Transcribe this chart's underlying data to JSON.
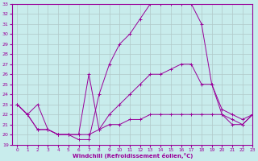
{
  "xlabel": "Windchill (Refroidissement éolien,°C)",
  "xlim": [
    -0.5,
    23
  ],
  "ylim": [
    19,
    33
  ],
  "yticks": [
    19,
    20,
    21,
    22,
    23,
    24,
    25,
    26,
    27,
    28,
    29,
    30,
    31,
    32,
    33
  ],
  "xticks": [
    0,
    1,
    2,
    3,
    4,
    5,
    6,
    7,
    8,
    9,
    10,
    11,
    12,
    13,
    14,
    15,
    16,
    17,
    18,
    19,
    20,
    21,
    22,
    23
  ],
  "bg_color": "#c8ecec",
  "line_color": "#990099",
  "grid_color": "#b0c8c8",
  "lines": [
    {
      "x": [
        0,
        1,
        2,
        3,
        4,
        5,
        6,
        7,
        8,
        9,
        10,
        11,
        12,
        13,
        14,
        15,
        16,
        17,
        18,
        19,
        20,
        21,
        22,
        23
      ],
      "y": [
        23,
        22,
        23,
        20.5,
        20,
        20,
        19.5,
        19.5,
        24,
        27,
        29,
        30,
        31.5,
        33,
        33,
        33,
        33,
        33,
        31,
        25,
        22,
        21.5,
        21,
        22
      ]
    },
    {
      "x": [
        0,
        1,
        2,
        3,
        4,
        5,
        6,
        7,
        8,
        9,
        10,
        11,
        12,
        13,
        14,
        15,
        16,
        17,
        18,
        19,
        20,
        21,
        22,
        23
      ],
      "y": [
        23,
        22,
        20.5,
        20.5,
        20,
        20,
        20,
        26,
        20.5,
        22,
        23,
        24,
        25,
        26,
        26,
        26.5,
        27,
        27,
        25,
        25,
        22.5,
        22,
        21.5,
        22
      ]
    },
    {
      "x": [
        0,
        1,
        2,
        3,
        4,
        5,
        6,
        7,
        8,
        9,
        10,
        11,
        12,
        13,
        14,
        15,
        16,
        17,
        18,
        19,
        20,
        21,
        22,
        23
      ],
      "y": [
        23,
        22,
        20.5,
        20.5,
        20,
        20,
        20,
        20,
        20.5,
        21,
        21,
        21.5,
        21.5,
        22,
        22,
        22,
        22,
        22,
        22,
        22,
        22,
        21,
        21,
        22
      ]
    }
  ]
}
